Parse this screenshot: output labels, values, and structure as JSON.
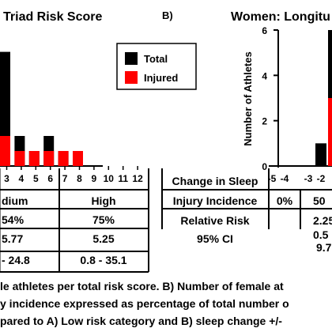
{
  "chart_data": [
    {
      "type": "bar",
      "panel": "A",
      "title": "Triad Risk Score",
      "categories": [
        "3",
        "4",
        "5",
        "6",
        "7",
        "8",
        "9",
        "10",
        "11",
        "12"
      ],
      "series": [
        {
          "name": "Total",
          "color": "#000000",
          "values": [
            7.6,
            2.0,
            1.0,
            2.0,
            1.0,
            0,
            0,
            0,
            0,
            0
          ]
        },
        {
          "name": "Injured",
          "color": "#ff0000",
          "values": [
            2.0,
            1.0,
            1.0,
            1.0,
            1.0,
            1.0,
            0,
            0,
            0,
            0
          ]
        }
      ],
      "ylim": [
        0,
        8
      ],
      "legend_position": "top-right",
      "table": {
        "columns": [
          "dium",
          "High"
        ],
        "rows": [
          [
            "54%",
            "75%"
          ],
          [
            "5.77",
            "5.25"
          ],
          [
            "- 24.8",
            "0.8 - 35.1"
          ]
        ]
      }
    },
    {
      "type": "bar",
      "panel": "B",
      "title": "Women: Longitu",
      "ylabel": "Number of Athletes",
      "categories": [
        "-5",
        "-4",
        "-3",
        "-2"
      ],
      "series": [
        {
          "name": "Total",
          "color": "#000000",
          "values": [
            0,
            0,
            1,
            6
          ]
        },
        {
          "name": "Injured",
          "color": "#ff0000",
          "values": [
            0,
            0,
            0,
            3
          ]
        }
      ],
      "yticks": [
        0,
        2,
        4,
        6
      ],
      "ylim": [
        0,
        6
      ],
      "table": {
        "row_labels": [
          "Change in Sleep",
          "Injury Incidence",
          "Relative Risk",
          "95% CI"
        ],
        "col1": [
          "",
          "0%",
          "",
          ""
        ],
        "col2": [
          "",
          "50",
          "2.25",
          "0.5\n9.7"
        ]
      }
    }
  ],
  "caption": {
    "line1": "le athletes per total risk score. B) Number of female at",
    "line2": "y incidence expressed as percentage of total number o",
    "line3": "pared to A) Low risk category and B) sleep change +/-"
  }
}
